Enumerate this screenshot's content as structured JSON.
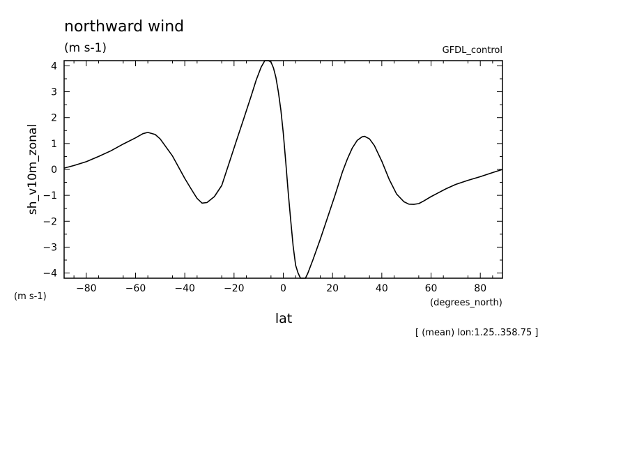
{
  "chart_data": {
    "type": "line",
    "title": "northward wind",
    "title_units": "(m s-1)",
    "dataset_label": "GFDL_control",
    "xlabel": "lat",
    "xlabel_units": "(degrees_north)",
    "ylabel": "sh_v10m_zonal",
    "ylabel_units": "(m s-1)",
    "footnote": "[ (mean) lon:1.25..358.75 ]",
    "xlim": [
      -89,
      89
    ],
    "ylim": [
      -4.2,
      4.2
    ],
    "x_ticks": [
      -80,
      -60,
      -40,
      -20,
      0,
      20,
      40,
      60,
      80
    ],
    "y_ticks": [
      -4,
      -3,
      -2,
      -1,
      0,
      1,
      2,
      3,
      4
    ],
    "grid": false,
    "line_color": "#000000",
    "series": [
      {
        "x": [
          -89,
          -85,
          -80,
          -75,
          -70,
          -65,
          -60,
          -57,
          -55,
          -52,
          -50,
          -45,
          -40,
          -37,
          -35,
          -33,
          -31,
          -28,
          -25,
          -22,
          -19,
          -16,
          -13,
          -11,
          -9,
          -7.5,
          -6,
          -5,
          -4,
          -3,
          -2,
          -1,
          0,
          1,
          2,
          3,
          4,
          5,
          6,
          7,
          8,
          9,
          10,
          12,
          15,
          18,
          21,
          24,
          26,
          28,
          30,
          32,
          33,
          35,
          37,
          40,
          43,
          46,
          49,
          51,
          53,
          55,
          57,
          60,
          63,
          66,
          70,
          75,
          80,
          85,
          89
        ],
        "y": [
          0.05,
          0.15,
          0.3,
          0.5,
          0.72,
          0.98,
          1.22,
          1.38,
          1.43,
          1.35,
          1.18,
          0.52,
          -0.35,
          -0.82,
          -1.12,
          -1.3,
          -1.28,
          -1.05,
          -0.62,
          0.25,
          1.12,
          1.98,
          2.85,
          3.45,
          3.95,
          4.2,
          4.22,
          4.15,
          3.92,
          3.55,
          3.0,
          2.3,
          1.4,
          0.3,
          -0.9,
          -1.95,
          -2.95,
          -3.7,
          -4.0,
          -4.2,
          -4.25,
          -4.2,
          -4.0,
          -3.5,
          -2.7,
          -1.85,
          -1.0,
          -0.1,
          0.4,
          0.82,
          1.12,
          1.26,
          1.28,
          1.18,
          0.92,
          0.32,
          -0.38,
          -0.95,
          -1.25,
          -1.34,
          -1.35,
          -1.32,
          -1.22,
          -1.05,
          -0.9,
          -0.75,
          -0.58,
          -0.42,
          -0.28,
          -0.12,
          0.0
        ]
      }
    ]
  }
}
